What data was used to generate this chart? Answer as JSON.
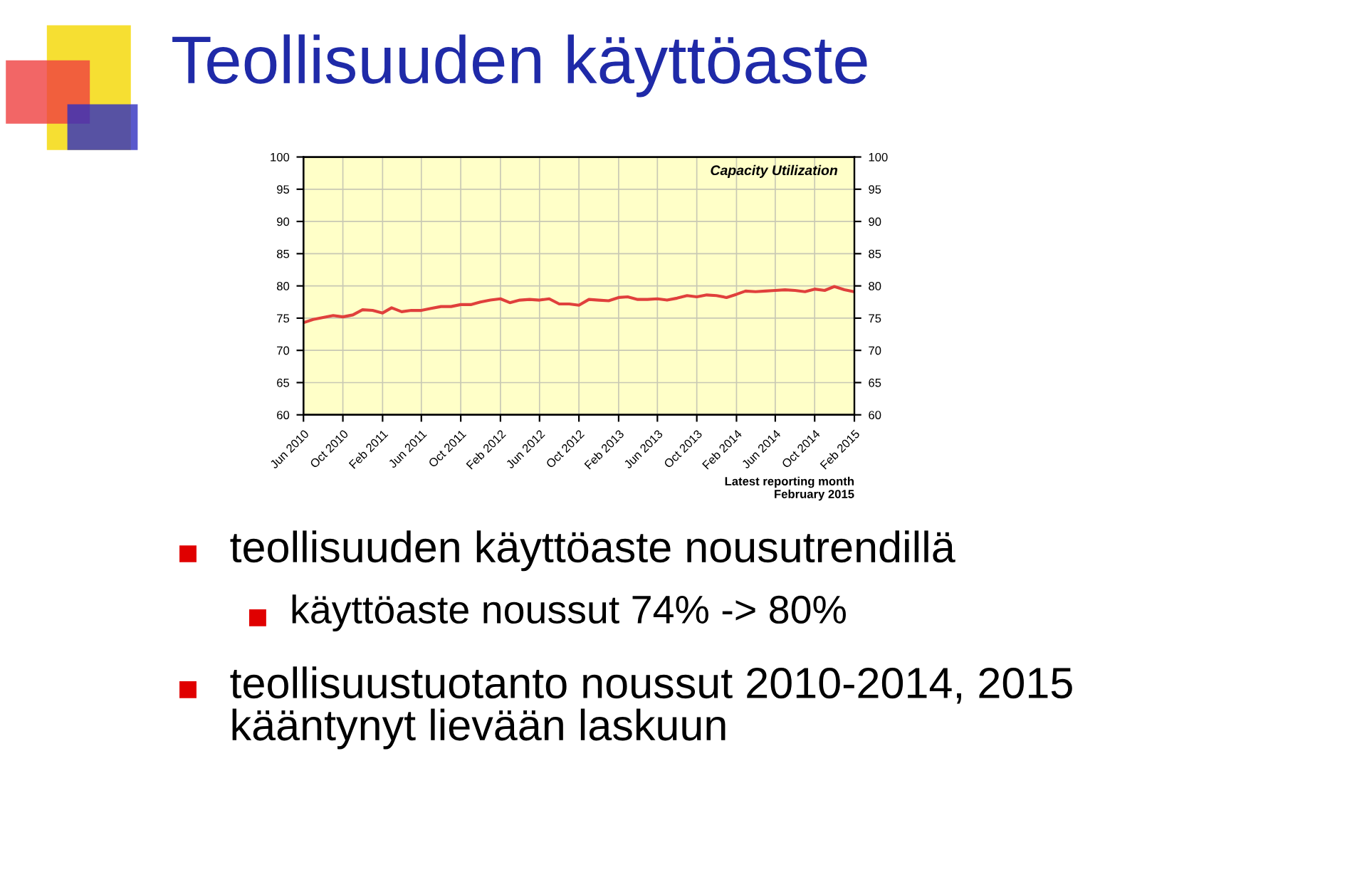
{
  "chart_data": {
    "type": "line",
    "title": "Teollisuuden käyttöaste",
    "subtitle": "Capacity Utilization",
    "annotations": [
      "Latest reporting month\nFebruary 2015",
      "teollisuuden käyttöaste nousutrendillä",
      "käyttöaste noussut 74% -> 80%",
      "teollisuustuotanto noussut 2010-2014, 2015\nkääntynyt lievään laskuun"
    ],
    "x": [
      "2010-06",
      "2010-07",
      "2010-08",
      "2010-09",
      "2010-10",
      "2010-11",
      "2010-12",
      "2011-01",
      "2011-02",
      "2011-03",
      "2011-04",
      "2011-05",
      "2011-06",
      "2011-07",
      "2011-08",
      "2011-09",
      "2011-10",
      "2011-11",
      "2011-12",
      "2012-01",
      "2012-02",
      "2012-03",
      "2012-04",
      "2012-05",
      "2012-06",
      "2012-07",
      "2012-08",
      "2012-09",
      "2012-10",
      "2012-11",
      "2012-12",
      "2013-01",
      "2013-02",
      "2013-03",
      "2013-04",
      "2013-05",
      "2013-06",
      "2013-07",
      "2013-08",
      "2013-09",
      "2013-10",
      "2013-11",
      "2013-12",
      "2014-01",
      "2014-02",
      "2014-03",
      "2014-04",
      "2014-05",
      "2014-06",
      "2014-07",
      "2014-08",
      "2014-09",
      "2014-10",
      "2014-11",
      "2014-12",
      "2015-01",
      "2015-02"
    ],
    "series": [
      {
        "color": "#e0403c",
        "values": [
          74.3,
          74.8,
          75.1,
          75.4,
          75.2,
          75.5,
          76.3,
          76.2,
          75.8,
          76.6,
          76.0,
          76.2,
          76.2,
          76.5,
          76.8,
          76.8,
          77.1,
          77.1,
          77.5,
          77.8,
          78.0,
          77.4,
          77.8,
          77.9,
          77.8,
          78.0,
          77.2,
          77.2,
          77.0,
          77.9,
          77.8,
          77.7,
          78.2,
          78.3,
          77.9,
          77.9,
          78.0,
          77.8,
          78.1,
          78.5,
          78.3,
          78.6,
          78.5,
          78.2,
          78.7,
          79.2,
          79.1,
          79.2,
          79.3,
          79.4,
          79.3,
          79.1,
          79.5,
          79.3,
          79.9,
          79.4,
          79.1
        ]
      }
    ],
    "xlim": [
      "2010-06",
      "2015-02"
    ],
    "xticks": [
      {
        "value": "2010-06",
        "label": "Jun 2010"
      },
      {
        "value": "2010-10",
        "label": "Oct 2010"
      },
      {
        "value": "2011-02",
        "label": "Feb 2011"
      },
      {
        "value": "2011-06",
        "label": "Jun 2011"
      },
      {
        "value": "2011-10",
        "label": "Oct 2011"
      },
      {
        "value": "2012-02",
        "label": "Feb 2012"
      },
      {
        "value": "2012-06",
        "label": "Jun 2012"
      },
      {
        "value": "2012-10",
        "label": "Oct 2012"
      },
      {
        "value": "2013-02",
        "label": "Feb 2013"
      },
      {
        "value": "2013-06",
        "label": "Jun 2013"
      },
      {
        "value": "2013-10",
        "label": "Oct 2013"
      },
      {
        "value": "2014-02",
        "label": "Feb 2014"
      },
      {
        "value": "2014-06",
        "label": "Jun 2014"
      },
      {
        "value": "2014-10",
        "label": "Oct 2014"
      },
      {
        "value": "2015-02",
        "label": "Feb 2015"
      }
    ],
    "ylim": [
      60,
      100
    ],
    "yticks": [
      60,
      65,
      70,
      75,
      80,
      85,
      90,
      95,
      100
    ],
    "y2lim": [
      60,
      100
    ],
    "y2ticks": [
      60,
      65,
      70,
      75,
      80,
      85,
      90,
      95,
      100
    ],
    "grid": true,
    "legend": false,
    "marker": "none",
    "line_style": "solid"
  }
}
